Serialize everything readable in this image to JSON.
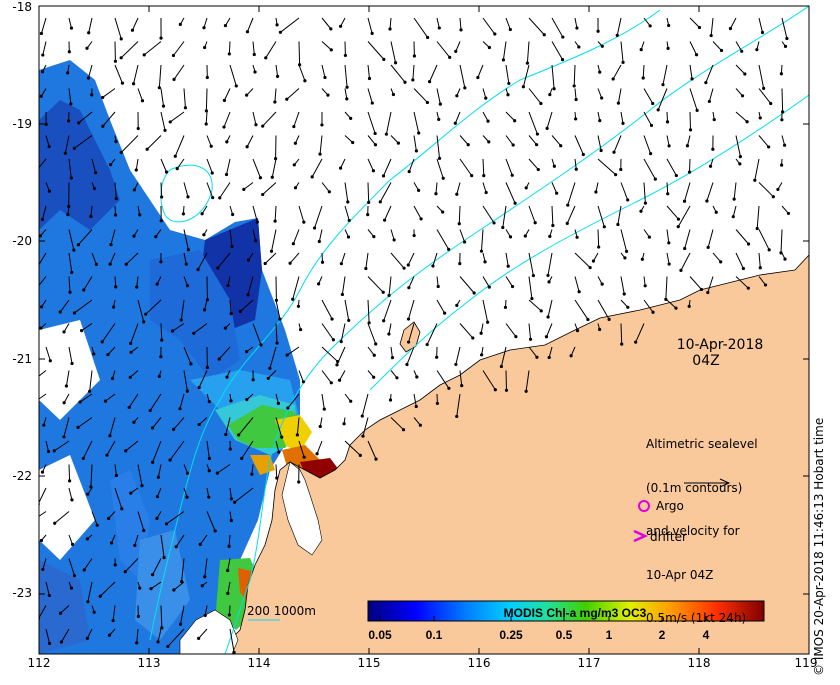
{
  "map": {
    "date": "10-Apr-2018",
    "time": "04Z",
    "lat_labels": [
      "-18",
      "-19",
      "-20",
      "-21",
      "-22",
      "-23"
    ],
    "lon_labels": [
      "112",
      "113",
      "114",
      "115",
      "116",
      "117",
      "118",
      "119"
    ],
    "legend_lines": [
      "Altimetric sealevel",
      "(0.1m contours)",
      "and velocity for",
      "10-Apr 04Z",
      "0.5m/s (1kt 24h)"
    ],
    "argo_label": "Argo",
    "drifter_label": "drifter",
    "contour_key": "200  1000m",
    "credit": "© IMOS 20-Apr-2018 11:46:13 Hobart time",
    "colorbar": {
      "title": "MODIS Chl-a mg/m3 OC3",
      "ticks": [
        "0.05",
        "0.1",
        "0.25",
        "0.5",
        "1",
        "2",
        "4"
      ]
    },
    "colors": {
      "land": "#f9c89b",
      "contour": "#00e0f0",
      "argo": "#e000e0",
      "drifter": "#e000e0"
    }
  }
}
